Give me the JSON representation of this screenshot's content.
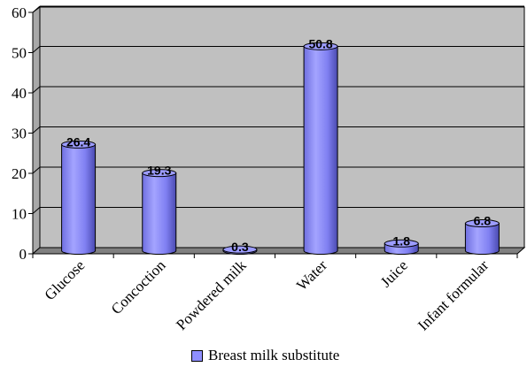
{
  "chart_data": {
    "type": "bar",
    "categories": [
      "Glucose",
      "Concoction",
      "Powdered milk",
      "Water",
      "Juice",
      "Infant formular"
    ],
    "series": [
      {
        "name": "Breast milk substitute",
        "values": [
          26.4,
          19.3,
          0.3,
          50.8,
          1.8,
          6.8
        ]
      }
    ],
    "data_labels": [
      "26.4",
      "19.3",
      "0.3",
      "50.8",
      "1.8",
      "6.8"
    ],
    "y_ticks": [
      "0",
      "10",
      "20",
      "30",
      "40",
      "50",
      "60"
    ],
    "ylim": [
      0,
      60
    ],
    "grid": true,
    "legend_position": "bottom",
    "colors": {
      "bar": "#8f8fff",
      "bar_dark": "#4a4ab0",
      "wall": "#c0c0c0",
      "floor": "#808080",
      "gridline": "#000000"
    }
  },
  "legend": {
    "label": "Breast milk substitute"
  }
}
